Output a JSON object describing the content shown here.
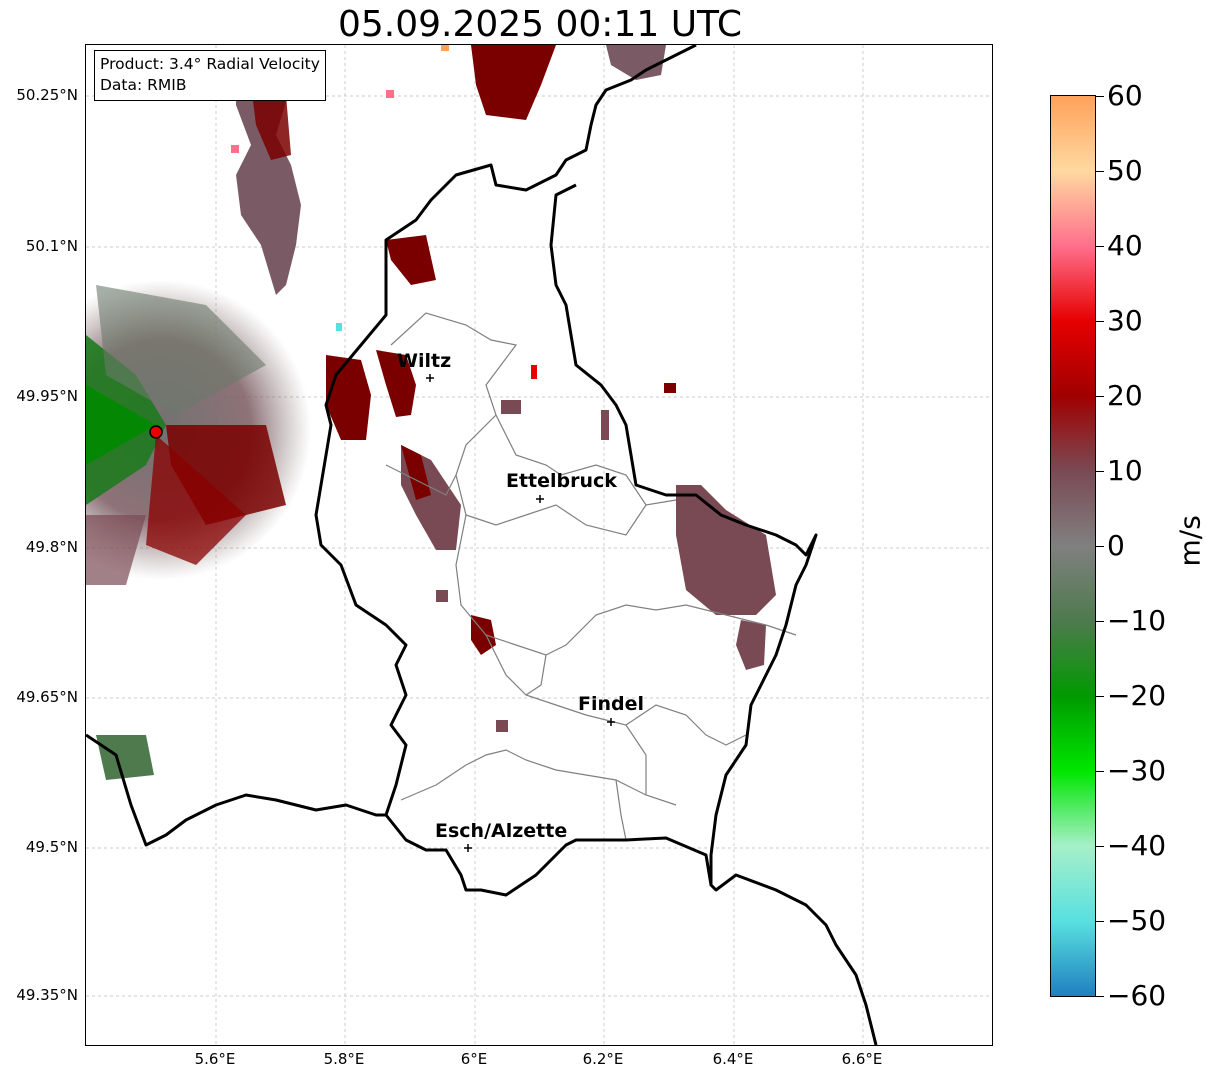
{
  "title": "05.09.2025 00:11 UTC",
  "info": {
    "product": "Product: 3.4° Radial Velocity",
    "source": "Data: RMIB"
  },
  "axes": {
    "lat_ticks": [
      "50.25°N",
      "50.1°N",
      "49.95°N",
      "49.8°N",
      "49.65°N",
      "49.5°N",
      "49.35°N"
    ],
    "lon_ticks": [
      "5.6°E",
      "5.8°E",
      "6°E",
      "6.2°E",
      "6.4°E",
      "6.6°E"
    ]
  },
  "map": {
    "extent": {
      "lon_min": 5.4,
      "lon_max": 6.8,
      "lat_min": 49.3,
      "lat_max": 50.3
    },
    "radar_site": {
      "lon": 5.505,
      "lat": 49.914
    },
    "cities": [
      {
        "name": "Wiltz",
        "lon": 5.933,
        "lat": 49.966
      },
      {
        "name": "Ettelbruck",
        "lon": 6.104,
        "lat": 49.847
      },
      {
        "name": "Findel",
        "lon": 6.211,
        "lat": 49.626
      },
      {
        "name": "Esch/Alzette",
        "lon": 5.986,
        "lat": 49.496
      }
    ]
  },
  "colorbar": {
    "unit": "m/s",
    "min": -60,
    "max": 60,
    "ticks": [
      "60",
      "50",
      "40",
      "30",
      "20",
      "10",
      "0",
      "−10",
      "−20",
      "−30",
      "−40",
      "−50",
      "−60"
    ],
    "colors": {
      "pos_50_60": "#ffa15a",
      "pos_40_50": "#ffd9a0",
      "pos_30_40": "#ff6f8c",
      "pos_20_30": "#e60000",
      "pos_10_20": "#a00000",
      "pos_0_10": "#7a4a54",
      "neutral": "#808080",
      "neg_0_10": "#4e7a4e",
      "neg_10_20": "#009a00",
      "neg_20_30": "#00e600",
      "neg_30_40": "#a6f0c8",
      "neg_40_50": "#58e0e0",
      "neg_50_60": "#2080c0"
    }
  },
  "chart_data": {
    "type": "heatmap",
    "title": "05.09.2025 00:11 UTC",
    "xlabel": "",
    "ylabel": "",
    "xlim": [
      5.4,
      6.8
    ],
    "ylim": [
      49.3,
      50.3
    ],
    "value_unit": "m/s",
    "value_range": [
      -60,
      60
    ],
    "grid": true
  }
}
